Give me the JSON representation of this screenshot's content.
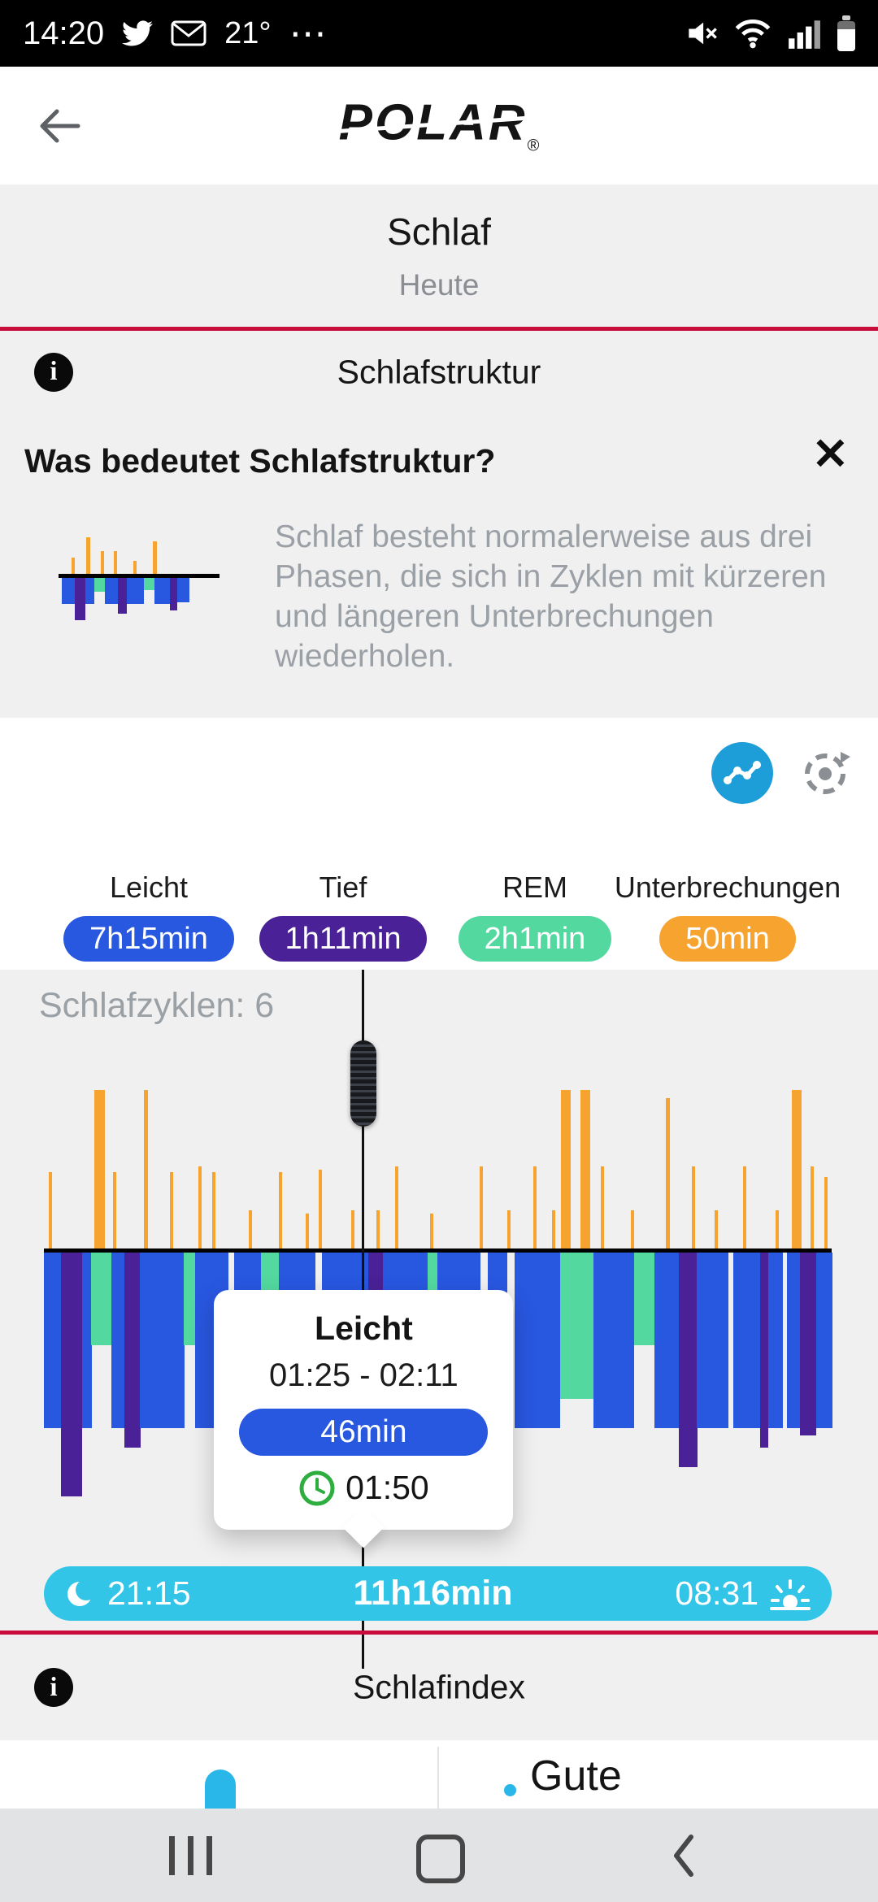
{
  "status_bar": {
    "time": "14:20",
    "temperature": "21°",
    "more_glyph": "⋯"
  },
  "app_bar": {
    "logo_text": "POLAR",
    "registered_mark": "®"
  },
  "sleep_header": {
    "title": "Schlaf",
    "date_label": "Heute"
  },
  "structure_section": {
    "title": "Schlafstruktur"
  },
  "structure_info": {
    "heading": "Was bedeutet Schlafstruktur?",
    "close_glyph": "✕",
    "body": "Schlaf besteht normalerweise aus drei Phasen, die sich in Zyklen mit kürzeren und längeren Unterbrechungen wiederholen."
  },
  "legend": {
    "items": [
      {
        "label": "Leicht",
        "value": "7h15min",
        "color": "#2857e0"
      },
      {
        "label": "Tief",
        "value": "1h11min",
        "color": "#4a2196"
      },
      {
        "label": "REM",
        "value": "2h1min",
        "color": "#53d8a0"
      },
      {
        "label": "Unterbrechungen",
        "value": "50min",
        "color": "#f6a42f"
      }
    ]
  },
  "chart_data": {
    "type": "bar",
    "variant": "hypnogram",
    "title": "Schlafstruktur",
    "cycles_label": "Schlafzyklen: 6",
    "cycles": 6,
    "window": {
      "start": "21:15",
      "end": "08:31",
      "duration": "11h16min"
    },
    "phase_totals": {
      "Leicht": "7h15min",
      "Tief": "1h11min",
      "REM": "2h1min",
      "Unterbrechungen": "50min"
    },
    "colors": {
      "light": "#2857e0",
      "deep": "#4a2196",
      "rem": "#53d8a0",
      "interruption": "#f6a42f"
    },
    "cursor_fraction": 0.406,
    "selected_segment": {
      "phase": "Leicht",
      "time_range": "01:25 - 02:11",
      "duration": "46min",
      "cursor_time": "01:50"
    },
    "segments": [
      {
        "x": 0.0,
        "w": 0.022,
        "p": "light",
        "d": 0.72
      },
      {
        "x": 0.022,
        "w": 0.026,
        "p": "deep",
        "d": 1.0
      },
      {
        "x": 0.048,
        "w": 0.012,
        "p": "light",
        "d": 0.72
      },
      {
        "x": 0.06,
        "w": 0.026,
        "p": "rem",
        "d": 0.38
      },
      {
        "x": 0.086,
        "w": 0.016,
        "p": "light",
        "d": 0.72
      },
      {
        "x": 0.102,
        "w": 0.02,
        "p": "deep",
        "d": 0.8
      },
      {
        "x": 0.122,
        "w": 0.056,
        "p": "light",
        "d": 0.72
      },
      {
        "x": 0.178,
        "w": 0.014,
        "p": "rem",
        "d": 0.38
      },
      {
        "x": 0.192,
        "w": 0.042,
        "p": "light",
        "d": 0.72
      },
      {
        "x": 0.234,
        "w": 0.008,
        "p": "wake",
        "d": 0
      },
      {
        "x": 0.242,
        "w": 0.034,
        "p": "light",
        "d": 0.72
      },
      {
        "x": 0.276,
        "w": 0.022,
        "p": "rem",
        "d": 0.45
      },
      {
        "x": 0.298,
        "w": 0.046,
        "p": "light",
        "d": 0.72
      },
      {
        "x": 0.344,
        "w": 0.009,
        "p": "wake",
        "d": 0
      },
      {
        "x": 0.353,
        "w": 0.059,
        "p": "light",
        "d": 0.72
      },
      {
        "x": 0.412,
        "w": 0.018,
        "p": "deep",
        "d": 0.85
      },
      {
        "x": 0.43,
        "w": 0.057,
        "p": "light",
        "d": 0.72
      },
      {
        "x": 0.487,
        "w": 0.012,
        "p": "rem",
        "d": 0.4
      },
      {
        "x": 0.499,
        "w": 0.055,
        "p": "light",
        "d": 0.72
      },
      {
        "x": 0.554,
        "w": 0.009,
        "p": "wake",
        "d": 0
      },
      {
        "x": 0.563,
        "w": 0.025,
        "p": "light",
        "d": 0.72
      },
      {
        "x": 0.588,
        "w": 0.01,
        "p": "wake",
        "d": 0
      },
      {
        "x": 0.598,
        "w": 0.057,
        "p": "light",
        "d": 0.72
      },
      {
        "x": 0.655,
        "w": 0.043,
        "p": "rem",
        "d": 0.6
      },
      {
        "x": 0.698,
        "w": 0.051,
        "p": "light",
        "d": 0.72
      },
      {
        "x": 0.749,
        "w": 0.026,
        "p": "rem",
        "d": 0.38
      },
      {
        "x": 0.775,
        "w": 0.031,
        "p": "light",
        "d": 0.72
      },
      {
        "x": 0.806,
        "w": 0.023,
        "p": "deep",
        "d": 0.88
      },
      {
        "x": 0.829,
        "w": 0.039,
        "p": "light",
        "d": 0.72
      },
      {
        "x": 0.868,
        "w": 0.007,
        "p": "wake",
        "d": 0
      },
      {
        "x": 0.875,
        "w": 0.034,
        "p": "light",
        "d": 0.72
      },
      {
        "x": 0.909,
        "w": 0.01,
        "p": "deep",
        "d": 0.8
      },
      {
        "x": 0.919,
        "w": 0.018,
        "p": "light",
        "d": 0.72
      },
      {
        "x": 0.937,
        "w": 0.006,
        "p": "wake",
        "d": 0
      },
      {
        "x": 0.943,
        "w": 0.017,
        "p": "light",
        "d": 0.72
      },
      {
        "x": 0.96,
        "w": 0.02,
        "p": "deep",
        "d": 0.75
      },
      {
        "x": 0.98,
        "w": 0.02,
        "p": "light",
        "d": 0.72
      }
    ],
    "interruptions": [
      {
        "x": 0.006,
        "h": 0.48,
        "w": 4
      },
      {
        "x": 0.064,
        "h": 1.0,
        "w": 13
      },
      {
        "x": 0.088,
        "h": 0.48,
        "w": 4
      },
      {
        "x": 0.127,
        "h": 1.0,
        "w": 5
      },
      {
        "x": 0.16,
        "h": 0.48,
        "w": 4
      },
      {
        "x": 0.196,
        "h": 0.52,
        "w": 4
      },
      {
        "x": 0.214,
        "h": 0.48,
        "w": 4
      },
      {
        "x": 0.26,
        "h": 0.24,
        "w": 4
      },
      {
        "x": 0.298,
        "h": 0.48,
        "w": 4
      },
      {
        "x": 0.332,
        "h": 0.22,
        "w": 4
      },
      {
        "x": 0.349,
        "h": 0.5,
        "w": 4
      },
      {
        "x": 0.39,
        "h": 0.24,
        "w": 4
      },
      {
        "x": 0.422,
        "h": 0.24,
        "w": 4
      },
      {
        "x": 0.446,
        "h": 0.52,
        "w": 4
      },
      {
        "x": 0.49,
        "h": 0.22,
        "w": 4
      },
      {
        "x": 0.553,
        "h": 0.52,
        "w": 4
      },
      {
        "x": 0.588,
        "h": 0.24,
        "w": 4
      },
      {
        "x": 0.621,
        "h": 0.52,
        "w": 4
      },
      {
        "x": 0.645,
        "h": 0.24,
        "w": 4
      },
      {
        "x": 0.656,
        "h": 1.0,
        "w": 12
      },
      {
        "x": 0.681,
        "h": 1.0,
        "w": 12
      },
      {
        "x": 0.707,
        "h": 0.52,
        "w": 4
      },
      {
        "x": 0.745,
        "h": 0.24,
        "w": 4
      },
      {
        "x": 0.789,
        "h": 0.95,
        "w": 5
      },
      {
        "x": 0.823,
        "h": 0.52,
        "w": 4
      },
      {
        "x": 0.851,
        "h": 0.24,
        "w": 4
      },
      {
        "x": 0.887,
        "h": 0.52,
        "w": 4
      },
      {
        "x": 0.929,
        "h": 0.24,
        "w": 4
      },
      {
        "x": 0.949,
        "h": 1.0,
        "w": 12
      },
      {
        "x": 0.973,
        "h": 0.52,
        "w": 4
      },
      {
        "x": 0.991,
        "h": 0.45,
        "w": 4
      }
    ]
  },
  "timeline_bar": {
    "start": "21:15",
    "duration": "11h16min",
    "end": "08:31"
  },
  "index_section": {
    "title": "Schlafindex"
  },
  "next_card": {
    "partial_text": "Gute"
  },
  "colors": {
    "accent_red": "#c80c3c",
    "timeline_cyan": "#33c5e8",
    "trend_button_blue": "#1e9ed9"
  }
}
